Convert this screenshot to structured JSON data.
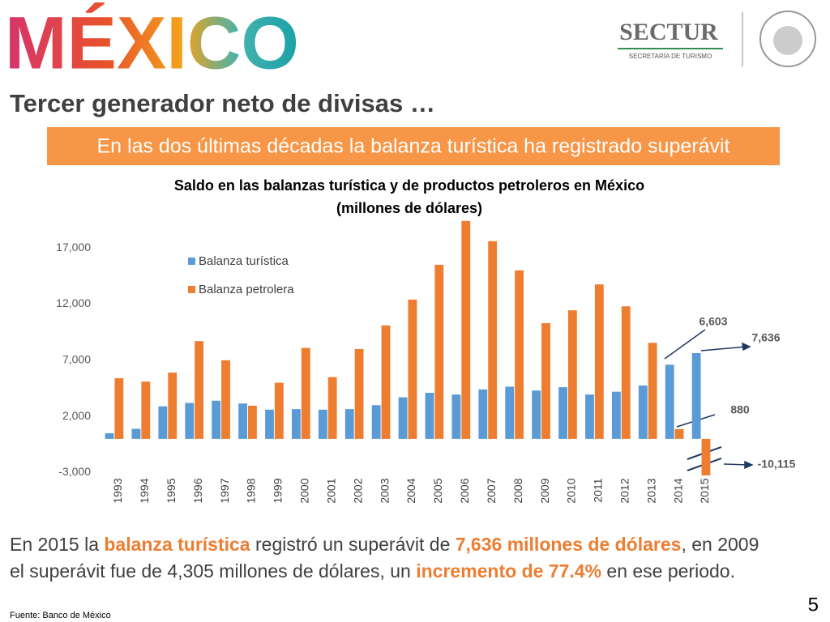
{
  "header": {
    "logo": "MÉXICO",
    "agency": "SECTUR",
    "agency_subtitle": "SECRETARÍA DE TURISMO",
    "title": "Tercer generador neto de divisas …",
    "banner": "En las dos últimas décadas la balanza turística ha registrado superávit"
  },
  "chart_data": {
    "type": "bar",
    "title": "Saldo en las balanzas turística y de productos petroleros en México",
    "subtitle": "(millones de dólares)",
    "categories": [
      "1993",
      "1994",
      "1995",
      "1996",
      "1997",
      "1998",
      "1999",
      "2000",
      "2001",
      "2002",
      "2003",
      "2004",
      "2005",
      "2006",
      "2007",
      "2008",
      "2009",
      "2010",
      "2011",
      "2012",
      "2013",
      "2014",
      "2015"
    ],
    "series": [
      {
        "name": "Balanza turística",
        "color": "#5b9bd5",
        "values": [
          500,
          900,
          2900,
          3200,
          3400,
          3150,
          2600,
          2650,
          2600,
          2650,
          3000,
          3700,
          4100,
          3950,
          4400,
          4650,
          4305,
          4600,
          3950,
          4200,
          4750,
          6603,
          7636
        ],
        "value_labels": [
          null,
          null,
          null,
          null,
          null,
          null,
          null,
          null,
          null,
          null,
          null,
          null,
          null,
          null,
          null,
          null,
          null,
          null,
          null,
          null,
          null,
          "6,603",
          "7,636"
        ]
      },
      {
        "name": "Balanza petrolera",
        "color": "#ed7d31",
        "values": [
          5400,
          5100,
          5900,
          8700,
          7000,
          2950,
          5000,
          8100,
          5500,
          8000,
          10100,
          12400,
          15500,
          19400,
          17600,
          15000,
          10300,
          11450,
          13750,
          11800,
          8550,
          880,
          -10115
        ],
        "value_labels": [
          null,
          null,
          null,
          null,
          null,
          null,
          null,
          null,
          null,
          null,
          null,
          null,
          null,
          null,
          null,
          null,
          null,
          null,
          null,
          null,
          null,
          "880",
          "-10,115"
        ]
      }
    ],
    "ylim": [
      -3000,
      20000
    ],
    "yticks": [
      {
        "value": -3000,
        "label": "-3,000"
      },
      {
        "value": 2000,
        "label": "2,000"
      },
      {
        "value": 7000,
        "label": "7,000"
      },
      {
        "value": 12000,
        "label": "12,000"
      },
      {
        "value": 17000,
        "label": "17,000"
      }
    ],
    "grid": false,
    "legend": "upper left"
  },
  "summary": {
    "lines": [
      [
        {
          "text": "En 2015 la ",
          "highlight": false
        },
        {
          "text": "balanza turística",
          "highlight": true
        },
        {
          "text": " registró un superávit de ",
          "highlight": false
        },
        {
          "text": "7,636 millones de dólares",
          "highlight": true
        },
        {
          "text": ", en 2009",
          "highlight": false
        }
      ],
      [
        {
          "text": "el superávit fue de 4,305 millones de dólares, un ",
          "highlight": false
        },
        {
          "text": "incremento de 77.4%",
          "highlight": true
        },
        {
          "text": " en ese periodo.",
          "highlight": false
        }
      ]
    ]
  },
  "footer": {
    "source": "Fuente: Banco de México",
    "page": "5"
  }
}
